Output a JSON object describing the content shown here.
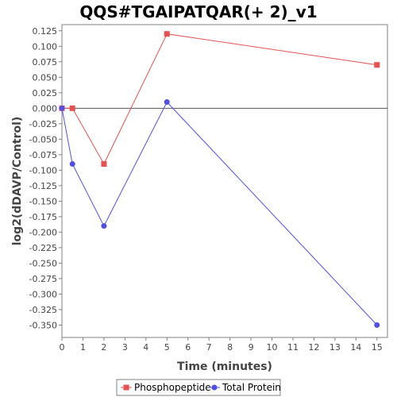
{
  "chart_data": {
    "type": "line",
    "title": "QQS#TGAIPATQAR(+ 2)_v1",
    "xlabel": "Time (minutes)",
    "ylabel": "log2(dDAVP/Control)",
    "xlim": [
      0,
      15.5
    ],
    "ylim": [
      -0.37,
      0.135
    ],
    "x_ticks": [
      0,
      1,
      2,
      3,
      4,
      5,
      6,
      7,
      8,
      9,
      10,
      11,
      12,
      13,
      14,
      15
    ],
    "y_ticks": [
      0.125,
      0.1,
      0.075,
      0.05,
      0.025,
      0.0,
      -0.025,
      -0.05,
      -0.075,
      -0.1,
      -0.125,
      -0.15,
      -0.175,
      -0.2,
      -0.225,
      -0.25,
      -0.275,
      -0.3,
      -0.325,
      -0.35
    ],
    "y_tick_labels": [
      "0.125",
      "0.100",
      "0.075",
      "0.050",
      "0.025",
      "0.000",
      "-0.025",
      "-0.050",
      "-0.075",
      "-0.100",
      "-0.125",
      "-0.150",
      "-0.175",
      "-0.200",
      "-0.225",
      "-0.250",
      "-0.275",
      "-0.300",
      "-0.325",
      "-0.350"
    ],
    "grid": false,
    "zero_line": true,
    "legend_position": "bottom",
    "series": [
      {
        "name": "Phosphopeptide",
        "color": "#e85050",
        "marker": "square",
        "x": [
          0,
          0.5,
          2,
          5,
          15
        ],
        "y": [
          0.0,
          0.0,
          -0.09,
          0.12,
          0.07
        ]
      },
      {
        "name": "Total Protein",
        "color": "#5050e8",
        "marker": "circle",
        "x": [
          0,
          0.5,
          2,
          5,
          15
        ],
        "y": [
          0.0,
          -0.09,
          -0.19,
          0.01,
          -0.35
        ]
      }
    ]
  }
}
